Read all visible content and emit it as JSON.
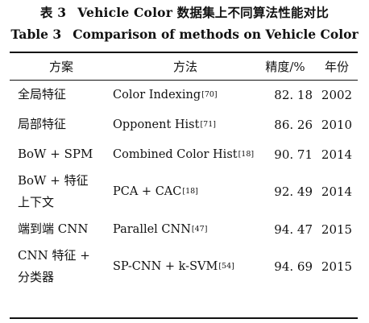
{
  "caption": {
    "cn_tag": "表 3",
    "cn_title": "Vehicle Color 数据集上不同算法性能对比",
    "en_tag": "Table 3",
    "en_title": "Comparison of methods on Vehicle Color"
  },
  "table": {
    "headers": {
      "scheme": "方案",
      "method": "方法",
      "accuracy": "精度/%",
      "year": "年份"
    },
    "rows": [
      {
        "scheme_lines": [
          "全局特征"
        ],
        "method": "Color Indexing",
        "ref": "[70]",
        "accuracy": "82. 18",
        "year": "2002"
      },
      {
        "scheme_lines": [
          "局部特征"
        ],
        "method": "Opponent Hist",
        "ref": "[71]",
        "accuracy": "86. 26",
        "year": "2010"
      },
      {
        "scheme_lines": [
          "BoW + SPM"
        ],
        "method": "Combined Color Hist",
        "ref": "[18]",
        "accuracy": "90. 71",
        "year": "2014"
      },
      {
        "scheme_lines": [
          "BoW + 特征",
          "上下文"
        ],
        "method": "PCA + CAC",
        "ref": "[18]",
        "accuracy": "92. 49",
        "year": "2014"
      },
      {
        "scheme_lines": [
          "端到端 CNN"
        ],
        "method": "Parallel CNN",
        "ref": "[47]",
        "accuracy": "94. 47",
        "year": "2015"
      },
      {
        "scheme_lines": [
          "CNN 特征 +",
          "分类器"
        ],
        "method": "SP-CNN  +  k-SVM",
        "ref": "[54]",
        "accuracy": "94. 69",
        "year": "2015"
      }
    ]
  }
}
